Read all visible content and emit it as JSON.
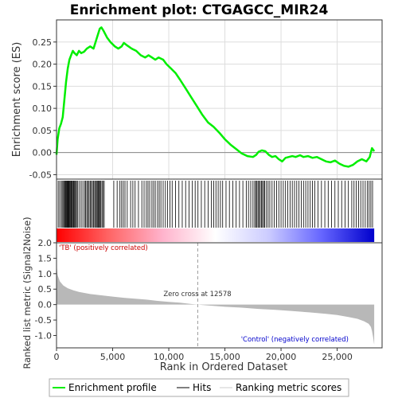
{
  "chart_data": {
    "type": "line",
    "title": "Enrichment plot: CTGAGCC_MIR24",
    "colors": {
      "es_line": "#00ee00",
      "pos_label": "#cc0000",
      "neg_label": "#0000cc",
      "metric_fill": "#b8b8b8",
      "zero_line": "#999999",
      "grid": "#dddddd",
      "hits": "#000000"
    },
    "es_panel": {
      "ylabel": "Enrichment score (ES)",
      "ylim": [
        -0.06,
        0.3
      ],
      "yticks": [
        -0.05,
        0.0,
        0.05,
        0.1,
        0.15,
        0.2,
        0.25
      ],
      "ytick_labels": [
        "-0.05",
        "0.00",
        "0.05",
        "0.10",
        "0.15",
        "0.20",
        "0.25"
      ],
      "series": [
        {
          "x": [
            0,
            100,
            250,
            400,
            550,
            700,
            850,
            1000,
            1150,
            1300,
            1450,
            1600,
            1800,
            2000,
            2200,
            2450,
            2700,
            3000,
            3300,
            3600,
            3850,
            4000,
            4200,
            4500,
            4800,
            5200,
            5500,
            5800,
            6000,
            6300,
            6700,
            7100,
            7500,
            7900,
            8200,
            8500,
            8800,
            9100,
            9500,
            9800,
            10200,
            10600,
            11000,
            11500,
            12000,
            12500,
            13000,
            13500,
            14000,
            14500,
            15000,
            15500,
            16000,
            16500,
            17000,
            17500,
            17800,
            18000,
            18300,
            18600,
            18900,
            19200,
            19500,
            19800,
            20100,
            20400,
            20700,
            21000,
            21300,
            21700,
            22000,
            22400,
            22800,
            23200,
            23600,
            24000,
            24400,
            24800,
            25200,
            25600,
            26000,
            26400,
            26800,
            27200,
            27600,
            27900,
            28100,
            28300
          ],
          "y": [
            -0.005,
            0.03,
            0.055,
            0.065,
            0.08,
            0.12,
            0.16,
            0.19,
            0.21,
            0.22,
            0.23,
            0.225,
            0.22,
            0.23,
            0.225,
            0.228,
            0.235,
            0.24,
            0.235,
            0.26,
            0.28,
            0.283,
            0.275,
            0.26,
            0.25,
            0.24,
            0.235,
            0.24,
            0.248,
            0.242,
            0.235,
            0.23,
            0.22,
            0.215,
            0.22,
            0.215,
            0.21,
            0.215,
            0.21,
            0.2,
            0.19,
            0.18,
            0.165,
            0.145,
            0.125,
            0.105,
            0.085,
            0.068,
            0.058,
            0.045,
            0.03,
            0.018,
            0.008,
            -0.002,
            -0.008,
            -0.01,
            -0.005,
            0.002,
            0.005,
            0.003,
            -0.005,
            -0.01,
            -0.008,
            -0.015,
            -0.02,
            -0.012,
            -0.01,
            -0.008,
            -0.01,
            -0.006,
            -0.01,
            -0.008,
            -0.012,
            -0.01,
            -0.015,
            -0.02,
            -0.022,
            -0.018,
            -0.025,
            -0.03,
            -0.032,
            -0.028,
            -0.02,
            -0.015,
            -0.02,
            -0.01,
            0.01,
            0.003
          ]
        }
      ]
    },
    "hit_positions": [
      150,
      280,
      420,
      510,
      620,
      700,
      760,
      820,
      880,
      940,
      1000,
      1050,
      1100,
      1160,
      1220,
      1290,
      1350,
      1420,
      1500,
      1560,
      1640,
      1700,
      1800,
      1900,
      2050,
      2200,
      2350,
      2500,
      2600,
      2700,
      2800,
      2900,
      3000,
      3100,
      3200,
      3300,
      3400,
      3480,
      3560,
      3640,
      3720,
      3800,
      3880,
      3950,
      4050,
      4150,
      4250,
      5100,
      5400,
      5650,
      5800,
      5950,
      6100,
      6300,
      6600,
      6800,
      7000,
      7300,
      7600,
      7800,
      8000,
      8150,
      8300,
      8500,
      8650,
      8800,
      9000,
      9150,
      9300,
      9500,
      9700,
      9900,
      10100,
      10300,
      10600,
      10900,
      11200,
      11500,
      11800,
      12100,
      12350,
      12600,
      12900,
      13200,
      13500,
      13800,
      14000,
      14200,
      14400,
      14600,
      14800,
      15100,
      15400,
      15700,
      16000,
      16300,
      16600,
      16900,
      17100,
      17300,
      17500,
      17650,
      17750,
      17850,
      17950,
      18050,
      18150,
      18250,
      18350,
      18450,
      18550,
      18700,
      18850,
      19000,
      19200,
      19400,
      19600,
      19800,
      20000,
      20200,
      20400,
      20600,
      20800,
      21000,
      21200,
      21400,
      21600,
      21800,
      22000,
      22200,
      22400,
      22600,
      22800,
      23000,
      23300,
      23600,
      23900,
      24200,
      24500,
      24800,
      25100,
      25400,
      25700,
      26000,
      26300,
      26500,
      26700,
      26900,
      27100,
      27300,
      27500,
      27700,
      27850,
      28000,
      28150
    ],
    "colorbar": {
      "stops": [
        "#ff0000",
        "#ff6666",
        "#ffb3cc",
        "#ffffff",
        "#ccccff",
        "#6666ff",
        "#0000cc"
      ]
    },
    "metric_panel": {
      "ylabel": "Ranked list metric (Signal2Noise)",
      "ylim": [
        -1.4,
        2.0
      ],
      "yticks": [
        -1.0,
        -0.5,
        0.0,
        0.5,
        1.0,
        1.5,
        2.0
      ],
      "ytick_labels": [
        "-1.0",
        "-0.5",
        "0.0",
        "0.5",
        "1.0",
        "1.5",
        "2.0"
      ],
      "x": [
        0,
        100,
        300,
        600,
        1000,
        1500,
        2000,
        3000,
        4000,
        5000,
        6000,
        7000,
        8000,
        9000,
        10000,
        11000,
        12000,
        12578,
        13500,
        15000,
        16500,
        18000,
        19500,
        21000,
        22500,
        24000,
        25000,
        26000,
        26800,
        27400,
        27800,
        28000,
        28100,
        28200,
        28300
      ],
      "values": [
        1.3,
        0.95,
        0.75,
        0.62,
        0.53,
        0.46,
        0.41,
        0.34,
        0.3,
        0.26,
        0.22,
        0.19,
        0.16,
        0.12,
        0.09,
        0.06,
        0.02,
        0.0,
        -0.03,
        -0.07,
        -0.1,
        -0.14,
        -0.17,
        -0.21,
        -0.25,
        -0.3,
        -0.34,
        -0.4,
        -0.46,
        -0.54,
        -0.62,
        -0.72,
        -0.85,
        -1.05,
        -1.3
      ],
      "zero_cross_label": "Zero cross at 12578",
      "pos_label": "'TB' (positively correlated)",
      "neg_label": "'Control' (negatively correlated)"
    },
    "xaxis": {
      "xlabel": "Rank in Ordered Dataset",
      "xlim": [
        0,
        29000
      ],
      "xticks": [
        0,
        5000,
        10000,
        15000,
        20000,
        25000
      ],
      "xtick_labels": [
        "0",
        "5,000",
        "10,000",
        "15,000",
        "20,000",
        "25,000"
      ],
      "total": 28300
    },
    "legend": {
      "placement": "bottom",
      "items": [
        "Enrichment profile",
        "Hits",
        "Ranking metric scores"
      ]
    }
  }
}
